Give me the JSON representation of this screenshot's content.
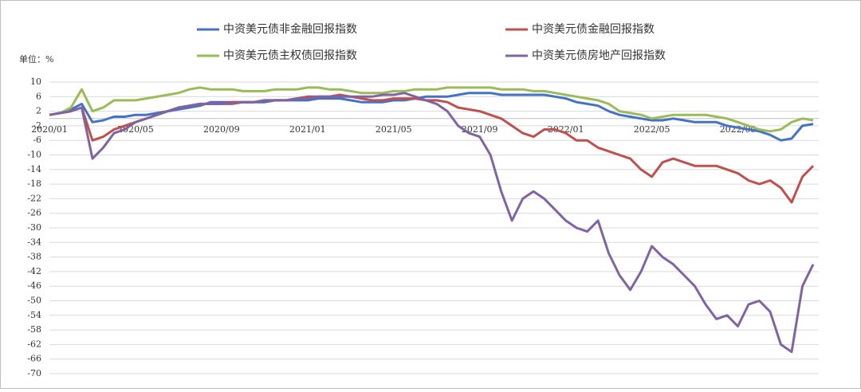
{
  "chart_data": {
    "type": "line",
    "unit_label": "单位：%",
    "categories": [
      "2020/01",
      null,
      null,
      null,
      null,
      null,
      null,
      null,
      "2020/05",
      null,
      null,
      null,
      null,
      null,
      null,
      null,
      "2020/09",
      null,
      null,
      null,
      null,
      null,
      null,
      null,
      "2021/01",
      null,
      null,
      null,
      null,
      null,
      null,
      null,
      "2021/05",
      null,
      null,
      null,
      null,
      null,
      null,
      null,
      "2021/09",
      null,
      null,
      null,
      null,
      null,
      null,
      null,
      "2022/01",
      null,
      null,
      null,
      null,
      null,
      null,
      null,
      "2022/05",
      null,
      null,
      null,
      null,
      null,
      null,
      null,
      "2022/09",
      null,
      null,
      null,
      null,
      null,
      null,
      null
    ],
    "series": [
      {
        "name": "中资美元债非金融回报指数",
        "color": "#4472c4",
        "values": [
          1,
          1.5,
          2.5,
          4,
          -1,
          -0.5,
          0.5,
          0.5,
          1,
          1,
          1.5,
          2,
          2.5,
          3,
          3.5,
          4.5,
          4.5,
          4.5,
          4.5,
          4.5,
          4.5,
          5,
          5,
          5,
          5,
          5.5,
          5.5,
          5.5,
          5,
          4.5,
          4.5,
          4.5,
          5,
          5,
          5.5,
          6,
          6,
          6,
          6.5,
          7,
          7,
          7,
          6.5,
          6.5,
          6.5,
          6.5,
          6.5,
          6,
          5.5,
          4.5,
          4,
          3.5,
          2,
          1,
          0.5,
          0,
          -0.5,
          -0.5,
          0,
          -0.5,
          -1,
          -1,
          -1,
          -2,
          -2.5,
          -3,
          -3.5,
          -4.5,
          -6,
          -5.5,
          -2,
          -1.5
        ]
      },
      {
        "name": "中资美元债金融回报指数",
        "color": "#c0504d",
        "values": [
          1,
          1.5,
          2,
          3,
          -6,
          -5,
          -3,
          -2,
          -1,
          0,
          1,
          2,
          3,
          3.5,
          4,
          4,
          4,
          4.5,
          4.5,
          4.5,
          5,
          5,
          5,
          5.5,
          6,
          6,
          6,
          6.5,
          6,
          5.5,
          5,
          5,
          5.5,
          5.5,
          5.5,
          5,
          5,
          4.5,
          3,
          2.5,
          2,
          1,
          0,
          -2,
          -4,
          -5,
          -3,
          -3,
          -4,
          -6,
          -6,
          -8,
          -9,
          -10,
          -11,
          -14,
          -16,
          -12,
          -11,
          -12,
          -13,
          -13,
          -13,
          -14,
          -15,
          -17,
          -18,
          -17,
          -19,
          -23,
          -16,
          -13
        ]
      },
      {
        "name": "中资美元债主权债回报指数",
        "color": "#9bbb59",
        "values": [
          1,
          1.5,
          3,
          8,
          2,
          3,
          5,
          5,
          5,
          5.5,
          6,
          6.5,
          7,
          8,
          8.5,
          8,
          8,
          8,
          7.5,
          7.5,
          7.5,
          8,
          8,
          8,
          8.5,
          8.5,
          8,
          8,
          7.5,
          7,
          7,
          7,
          7.5,
          7.5,
          8,
          8,
          8,
          8.5,
          8.5,
          8.5,
          8.5,
          8.5,
          8,
          8,
          8,
          7.5,
          7.5,
          7,
          6.5,
          6,
          5.5,
          5,
          4,
          2,
          1.5,
          1,
          0,
          0.5,
          1,
          1,
          1,
          1,
          0.5,
          0,
          -1,
          -2,
          -3,
          -3.5,
          -3,
          -1,
          0,
          -0.5
        ]
      },
      {
        "name": "中资美元债房地产回报指数",
        "color": "#8064a2",
        "values": [
          1,
          1.5,
          2,
          3,
          -11,
          -8,
          -4,
          -3,
          -1,
          0,
          1,
          2,
          3,
          3.5,
          4,
          4,
          4,
          4,
          4.5,
          4.5,
          5,
          5,
          5,
          5.5,
          5.5,
          6,
          6,
          6,
          6,
          6,
          6,
          6.5,
          6.5,
          7,
          6,
          5,
          4,
          2,
          -2,
          -4,
          -5,
          -10,
          -20,
          -28,
          -22,
          -20,
          -22,
          -25,
          -28,
          -30,
          -31,
          -28,
          -37,
          -43,
          -47,
          -42,
          -35,
          -38,
          -40,
          -43,
          -46,
          -51,
          -55,
          -54,
          -57,
          -51,
          -50,
          -53,
          -62,
          -64,
          -46,
          -40
        ]
      }
    ],
    "ylim": [
      -70,
      10
    ],
    "yticks": [
      10,
      6,
      2,
      -2,
      -6,
      -10,
      -14,
      -18,
      -22,
      -26,
      -30,
      -34,
      -38,
      -42,
      -46,
      -50,
      -54,
      -58,
      -62,
      -66,
      -70
    ],
    "grid": true
  }
}
